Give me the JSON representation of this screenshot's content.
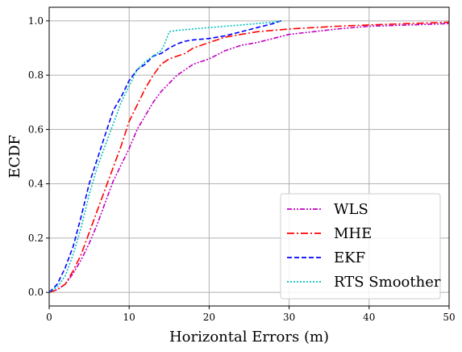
{
  "chart_data": {
    "type": "line",
    "title": "",
    "xlabel": "Horizontal Errors (m)",
    "ylabel": "ECDF",
    "xlim": [
      0,
      50
    ],
    "ylim": [
      -0.05,
      1.05
    ],
    "xticks": [
      0,
      10,
      20,
      30,
      40,
      50
    ],
    "yticks": [
      0.0,
      0.2,
      0.4,
      0.6,
      0.8,
      1.0
    ],
    "ytick_labels": [
      "0.0",
      "0.2",
      "0.4",
      "0.6",
      "0.8",
      "1.0"
    ],
    "grid": true,
    "legend_position": "bottom-right",
    "series": [
      {
        "name": "WLS",
        "color": "#bf00bf",
        "dash": "dashdotdot",
        "x": [
          0,
          1,
          2,
          3,
          4,
          5,
          6,
          7,
          8,
          9,
          10,
          11,
          12,
          13,
          14,
          15,
          16,
          17,
          18,
          20,
          22,
          24,
          26,
          28,
          30,
          33,
          36,
          40,
          45,
          50
        ],
        "y": [
          0.0,
          0.01,
          0.03,
          0.07,
          0.12,
          0.18,
          0.25,
          0.33,
          0.41,
          0.47,
          0.53,
          0.6,
          0.65,
          0.7,
          0.74,
          0.77,
          0.8,
          0.82,
          0.84,
          0.86,
          0.89,
          0.91,
          0.92,
          0.935,
          0.95,
          0.96,
          0.97,
          0.98,
          0.985,
          0.99
        ]
      },
      {
        "name": "MHE",
        "color": "#ff0000",
        "dash": "dashdot",
        "x": [
          0,
          1,
          2,
          3,
          4,
          5,
          6,
          7,
          8,
          9,
          10,
          11,
          12,
          13,
          14,
          15,
          16,
          17,
          18,
          20,
          22,
          24,
          26,
          28,
          30,
          33,
          36,
          40,
          45,
          50
        ],
        "y": [
          0.0,
          0.01,
          0.03,
          0.08,
          0.14,
          0.22,
          0.3,
          0.38,
          0.46,
          0.54,
          0.63,
          0.69,
          0.75,
          0.8,
          0.84,
          0.86,
          0.87,
          0.88,
          0.9,
          0.92,
          0.94,
          0.95,
          0.96,
          0.965,
          0.97,
          0.975,
          0.98,
          0.985,
          0.99,
          0.995
        ]
      },
      {
        "name": "EKF",
        "color": "#0000ff",
        "dash": "dashed",
        "x": [
          0,
          1,
          2,
          3,
          4,
          5,
          6,
          7,
          8,
          9,
          10,
          11,
          12,
          13,
          14,
          15,
          16,
          17,
          18,
          20,
          22,
          24,
          26,
          28,
          29
        ],
        "y": [
          0.0,
          0.03,
          0.09,
          0.17,
          0.28,
          0.4,
          0.49,
          0.58,
          0.67,
          0.72,
          0.78,
          0.82,
          0.84,
          0.87,
          0.88,
          0.9,
          0.915,
          0.925,
          0.93,
          0.935,
          0.945,
          0.96,
          0.975,
          0.99,
          1.0
        ]
      },
      {
        "name": "RTS Smoother",
        "color": "#00bfbf",
        "dash": "dotted",
        "x": [
          0,
          1,
          2,
          3,
          4,
          5,
          6,
          7,
          8,
          9,
          10,
          11,
          12,
          13,
          14,
          14.5,
          15,
          16,
          18,
          20,
          22,
          24,
          26,
          28,
          29
        ],
        "y": [
          0.0,
          0.02,
          0.06,
          0.14,
          0.24,
          0.36,
          0.46,
          0.54,
          0.62,
          0.7,
          0.76,
          0.82,
          0.85,
          0.87,
          0.89,
          0.92,
          0.96,
          0.965,
          0.97,
          0.975,
          0.98,
          0.985,
          0.99,
          0.995,
          1.0
        ]
      }
    ]
  }
}
